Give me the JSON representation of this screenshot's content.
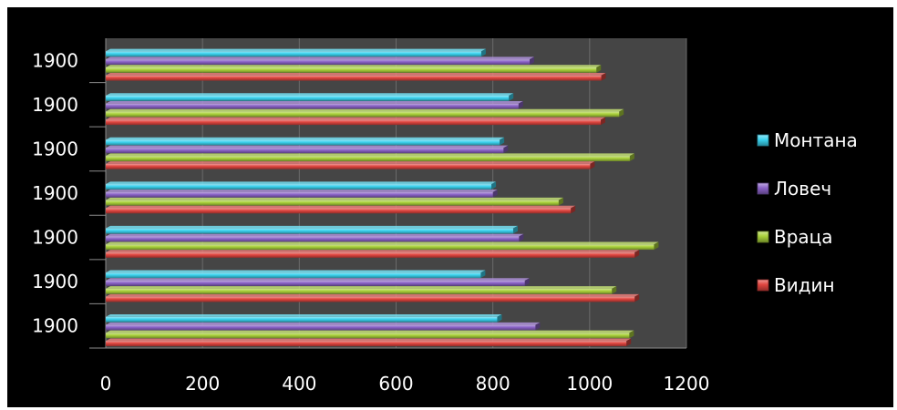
{
  "chart_data": {
    "type": "bar",
    "orientation": "horizontal",
    "categories": [
      "1900",
      "1900",
      "1900",
      "1900",
      "1900",
      "1900",
      "1900"
    ],
    "series": [
      {
        "name": "Видин",
        "color": "#e0453f",
        "values": [
          1076,
          1093,
          1093,
          961,
          1001,
          1023,
          1024
        ]
      },
      {
        "name": "Враца",
        "color": "#a9d13a",
        "values": [
          1082,
          1046,
          1133,
          936,
          1083,
          1061,
          1014
        ]
      },
      {
        "name": "Ловеч",
        "color": "#8a62c7",
        "values": [
          888,
          866,
          854,
          800,
          822,
          853,
          876
        ]
      },
      {
        "name": "Монтана",
        "color": "#3ad2ee",
        "values": [
          809,
          775,
          842,
          797,
          814,
          833,
          776
        ]
      }
    ],
    "xlim": [
      0,
      1200
    ],
    "x_ticks": [
      "0",
      "200",
      "400",
      "600",
      "800",
      "1000",
      "1200"
    ],
    "grid": true,
    "legend_position": "right",
    "plot_background": "#454545",
    "figure_background": "#000000"
  }
}
